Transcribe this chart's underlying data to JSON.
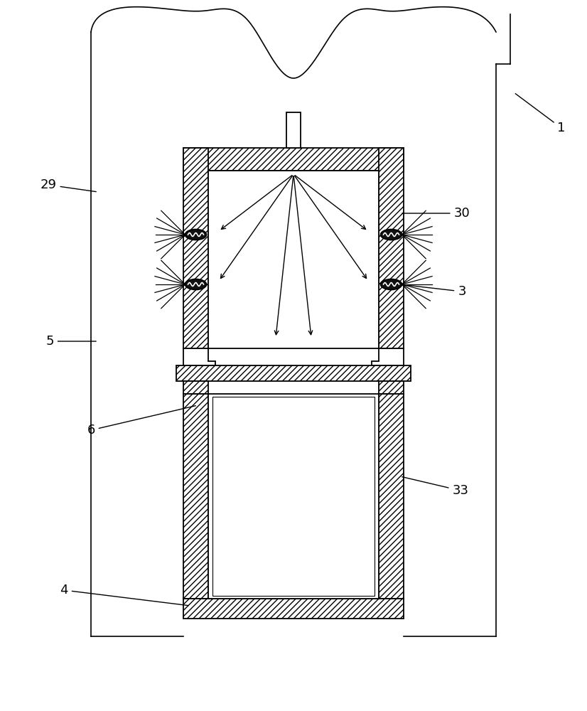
{
  "bg_color": "#ffffff",
  "line_color": "#000000",
  "fig_width": 8.26,
  "fig_height": 10.0,
  "label_fontsize": 13
}
